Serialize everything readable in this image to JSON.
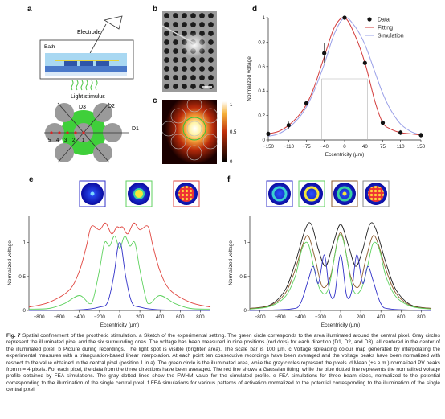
{
  "panels": {
    "a": {
      "label": "a",
      "electrode_label": "Electrode",
      "bath_label": "Bath",
      "light_label": "Light stimulus",
      "direction_labels": [
        "D1",
        "D2",
        "D3"
      ],
      "position_numbers": [
        "5",
        "4",
        "3",
        "2",
        "1"
      ]
    },
    "b": {
      "label": "b"
    },
    "c": {
      "label": "c",
      "colorbar_ticks": [
        "1",
        "0.5",
        "0"
      ]
    },
    "d": {
      "label": "d"
    },
    "e": {
      "label": "e"
    },
    "f": {
      "label": "f"
    }
  },
  "colors": {
    "data": "#111111",
    "fitting": "#d23a3a",
    "simulation": "#9aa0e8",
    "fwhm": "#b0b0b0",
    "green_illumination": "#39c43a",
    "single": "#3030c8",
    "three": "#5fd25f",
    "seven": "#e0453f",
    "f_brown": "#8b5a2b",
    "f_dark": "#222222"
  },
  "chart_data": [
    {
      "id": "d",
      "type": "scatter",
      "title": "",
      "xlabel": "Eccentricity (µm)",
      "ylabel": "Normalized voltage",
      "xlim": [
        -150,
        150
      ],
      "ylim": [
        0,
        1
      ],
      "xticks": [
        "-150",
        "-110",
        "-75",
        "-40",
        "0",
        "40",
        "75",
        "110",
        "150"
      ],
      "yticks": [
        "0",
        "0.2",
        "0.4",
        "0.6",
        "0.8",
        "1"
      ],
      "legend_position": "top-right",
      "legend": [
        "Data",
        "Fitting",
        "Simulation"
      ],
      "series": [
        {
          "name": "Data",
          "x": [
            -150,
            -110,
            -75,
            -40,
            0,
            40,
            75,
            110,
            150
          ],
          "y": [
            0.05,
            0.12,
            0.3,
            0.71,
            1.0,
            0.63,
            0.14,
            0.06,
            0.04
          ],
          "err": [
            0.02,
            0.03,
            0.02,
            0.08,
            0.01,
            0.04,
            0.02,
            0.02,
            0.02
          ]
        },
        {
          "name": "Fitting",
          "x": [
            -150,
            -130,
            -110,
            -90,
            -75,
            -60,
            -40,
            -20,
            0,
            20,
            40,
            60,
            75,
            90,
            110,
            130,
            150
          ],
          "y": [
            0.05,
            0.07,
            0.12,
            0.2,
            0.29,
            0.43,
            0.68,
            0.92,
            1.0,
            0.86,
            0.63,
            0.31,
            0.14,
            0.09,
            0.06,
            0.05,
            0.04
          ]
        },
        {
          "name": "Simulation",
          "x": [
            -150,
            -130,
            -110,
            -90,
            -75,
            -60,
            -40,
            -20,
            0,
            20,
            40,
            60,
            75,
            90,
            110,
            130,
            150
          ],
          "y": [
            0.03,
            0.05,
            0.1,
            0.18,
            0.27,
            0.4,
            0.62,
            0.87,
            1.0,
            0.93,
            0.78,
            0.55,
            0.38,
            0.25,
            0.13,
            0.07,
            0.04
          ]
        }
      ],
      "fwhm": {
        "y": 0.5,
        "x": [
          -45,
          45
        ]
      }
    },
    {
      "id": "e",
      "type": "line",
      "xlabel": "Eccentricity (µm)",
      "ylabel": "Normalized voltage",
      "xlim": [
        -900,
        900
      ],
      "ylim": [
        0,
        1.4
      ],
      "xticks": [
        "-800",
        "-600",
        "-400",
        "-200",
        "0",
        "200",
        "400",
        "600",
        "800"
      ],
      "yticks": [
        "0",
        "0.5",
        "1"
      ],
      "series": [
        {
          "x": [
            -900,
            -700,
            -500,
            -400,
            -330,
            -280,
            -200,
            -140,
            -80,
            -30,
            0,
            30,
            80,
            140,
            200,
            280,
            330,
            400,
            500,
            700,
            900
          ],
          "y": [
            0.05,
            0.12,
            0.3,
            0.58,
            0.95,
            1.24,
            1.19,
            1.29,
            1.13,
            1.23,
            1.22,
            1.23,
            1.13,
            1.29,
            1.19,
            1.24,
            0.95,
            0.58,
            0.3,
            0.12,
            0.05
          ]
        },
        {
          "x": [
            -900,
            -700,
            -550,
            -400,
            -300,
            -260,
            -200,
            -150,
            -100,
            -50,
            0,
            50,
            100,
            150,
            200,
            260,
            300,
            400,
            550,
            700,
            900
          ],
          "y": [
            0.02,
            0.03,
            0.1,
            0.22,
            0.1,
            0.18,
            0.6,
            1.0,
            0.95,
            1.1,
            0.92,
            1.1,
            0.95,
            1.0,
            0.6,
            0.18,
            0.1,
            0.22,
            0.1,
            0.03,
            0.02
          ]
        },
        {
          "x": [
            -900,
            -400,
            -200,
            -120,
            -60,
            -20,
            0,
            20,
            60,
            120,
            200,
            400,
            900
          ],
          "y": [
            0.0,
            0.01,
            0.05,
            0.12,
            0.5,
            0.92,
            1.0,
            0.92,
            0.5,
            0.12,
            0.05,
            0.01,
            0.0
          ]
        }
      ]
    },
    {
      "id": "f",
      "type": "line",
      "xlabel": "Eccentricity (µm)",
      "ylabel": "Normalized voltage",
      "xlim": [
        -900,
        900
      ],
      "ylim": [
        0,
        1.4
      ],
      "xticks": [
        "-800",
        "-600",
        "-400",
        "-200",
        "0",
        "200",
        "400",
        "600",
        "800"
      ],
      "yticks": [
        "0",
        "0.5",
        "1"
      ],
      "series": [
        {
          "x": [
            -900,
            -700,
            -550,
            -450,
            -350,
            -290,
            -220,
            -150,
            -80,
            0,
            80,
            150,
            220,
            290,
            350,
            450,
            550,
            700,
            900
          ],
          "y": [
            0.03,
            0.08,
            0.3,
            0.7,
            1.2,
            1.27,
            0.9,
            0.65,
            0.95,
            1.27,
            0.95,
            0.65,
            0.9,
            1.27,
            1.2,
            0.7,
            0.3,
            0.08,
            0.03
          ]
        },
        {
          "x": [
            -900,
            -700,
            -550,
            -450,
            -380,
            -320,
            -250,
            -180,
            -100,
            0,
            100,
            180,
            250,
            320,
            380,
            450,
            550,
            700,
            900
          ],
          "y": [
            0.03,
            0.07,
            0.25,
            0.6,
            0.95,
            1.1,
            0.75,
            0.35,
            0.5,
            1.15,
            0.5,
            0.35,
            0.75,
            1.1,
            0.95,
            0.6,
            0.25,
            0.07,
            0.03
          ]
        },
        {
          "x": [
            -900,
            -700,
            -550,
            -450,
            -380,
            -320,
            -260,
            -200,
            -120,
            0,
            120,
            200,
            260,
            320,
            380,
            450,
            550,
            700,
            900
          ],
          "y": [
            0.02,
            0.06,
            0.2,
            0.5,
            0.92,
            0.98,
            0.6,
            0.3,
            0.32,
            1.12,
            0.32,
            0.3,
            0.6,
            0.98,
            0.92,
            0.5,
            0.2,
            0.06,
            0.02
          ]
        },
        {
          "x": [
            -900,
            -500,
            -400,
            -320,
            -270,
            -220,
            -160,
            -110,
            -60,
            0,
            60,
            110,
            160,
            220,
            270,
            320,
            400,
            500,
            900
          ],
          "y": [
            0.0,
            0.02,
            0.1,
            0.45,
            0.65,
            0.4,
            0.82,
            0.28,
            0.22,
            0.82,
            0.22,
            0.28,
            0.82,
            0.4,
            0.65,
            0.45,
            0.1,
            0.02,
            0.0
          ]
        }
      ]
    }
  ],
  "caption": {
    "fig_label": "Fig. 7",
    "text": "Spatial confinement of the prosthetic stimulation. a Sketch of the experimental setting. The green circle corresponds to the area illuminated around the central pixel. Gray circles represent the illuminated pixel and the six surrounding ones. The voltage has been measured in nine positions (red dots) for each direction (D1, D2, and D3), all centered in the center of the illuminated pixel. b Picture during recordings. The light spot is visible (brighter area). The scale bar is 100 µm. c Voltage spreading colour map generated by interpolating the experimental measures with a triangulation-based linear interpolation. At each point ten consecutive recordings have been averaged and the voltage peaks have been normalized with respect to the value obtained in the central pixel (position 1 in a). The green circle is the illuminated area, while the gray circles represent the pixels. d Mean (±s.e.m.) normalized PV peaks from n = 4 pixels. For each pixel, the data from the three directions have been averaged. The red line shows a Gaussian fitting, while the blue dotted line represents the normalized voltage profile obtained by FEA simulations. The gray dotted lines show the FWHM value for the simulated profile. e FEA simulations for three beam sizes, normalized to the potential corresponding to the illumination of the single central pixel. f FEA simulations for various patterns of activation normalized to the potential corresponding to the illumination of the single central pixel"
  }
}
